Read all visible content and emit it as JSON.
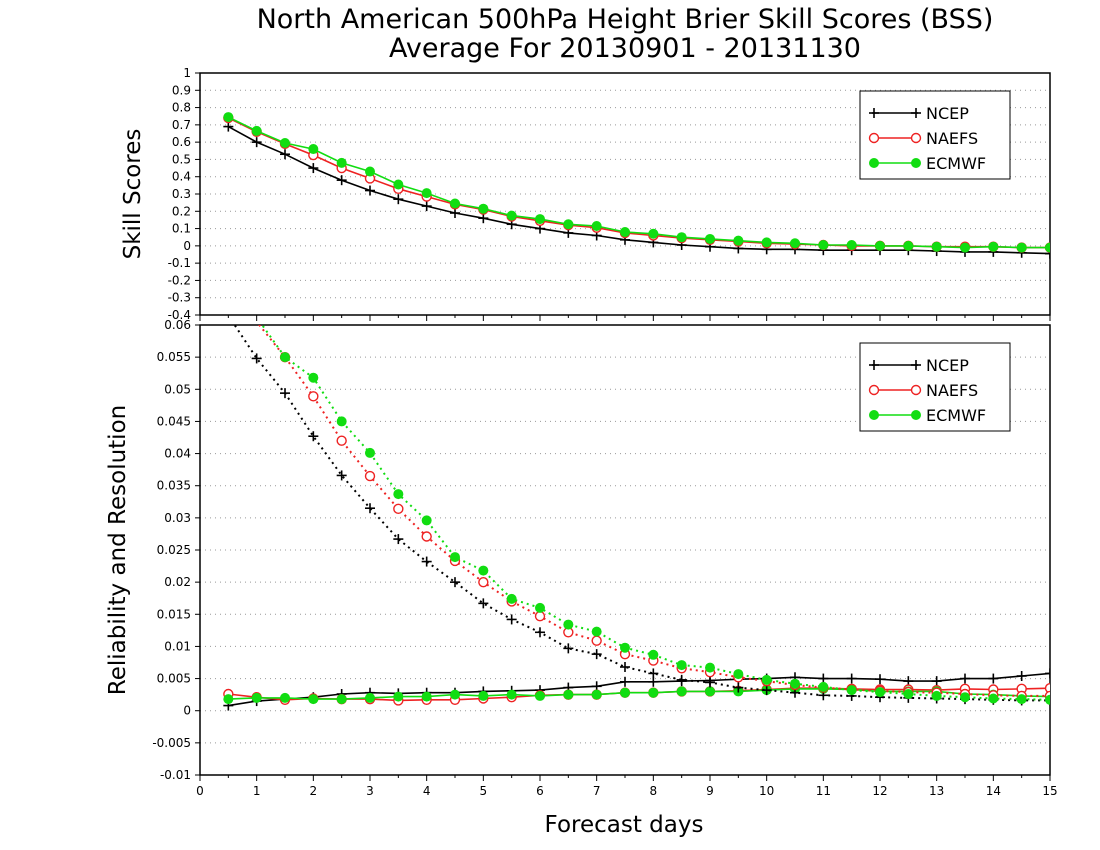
{
  "title": "North American 500hPa Height Brier Skill Scores (BSS)",
  "subtitle": "Average For 20130901 - 20131130",
  "x_axis_label": "Forecast days",
  "colors": {
    "NCEP": "#000000",
    "NAEFS": "#ee2222",
    "ECMWF": "#11dd11",
    "grid": "#999999"
  },
  "chart_data": [
    {
      "type": "line",
      "panel": "top",
      "ylabel": "Skill Scores",
      "xlim": [
        0,
        15
      ],
      "ylim": [
        -0.4,
        1
      ],
      "yticks": [
        "-0.4",
        "-0.3",
        "-0.2",
        "-0.1",
        "0",
        "0.1",
        "0.2",
        "0.3",
        "0.4",
        "0.5",
        "0.6",
        "0.7",
        "0.8",
        "0.9",
        "1"
      ],
      "grid": true,
      "legend_position": "top-right",
      "x": [
        0.5,
        1,
        1.5,
        2,
        2.5,
        3,
        3.5,
        4,
        4.5,
        5,
        5.5,
        6,
        6.5,
        7,
        7.5,
        8,
        8.5,
        9,
        9.5,
        10,
        10.5,
        11,
        11.5,
        12,
        12.5,
        13,
        13.5,
        14,
        14.5,
        15
      ],
      "series": [
        {
          "name": "NCEP",
          "marker": "plus",
          "values": [
            0.69,
            0.6,
            0.53,
            0.45,
            0.38,
            0.32,
            0.27,
            0.23,
            0.19,
            0.16,
            0.125,
            0.1,
            0.075,
            0.06,
            0.035,
            0.02,
            0.005,
            -0.005,
            -0.015,
            -0.02,
            -0.02,
            -0.025,
            -0.025,
            -0.025,
            -0.025,
            -0.03,
            -0.035,
            -0.035,
            -0.04,
            -0.045
          ]
        },
        {
          "name": "NAEFS",
          "marker": "open-circle",
          "values": [
            0.74,
            0.66,
            0.59,
            0.525,
            0.45,
            0.39,
            0.33,
            0.285,
            0.24,
            0.21,
            0.17,
            0.145,
            0.12,
            0.105,
            0.075,
            0.06,
            0.045,
            0.035,
            0.025,
            0.015,
            0.01,
            0.005,
            0.0,
            0.0,
            0.0,
            -0.005,
            -0.005,
            -0.005,
            -0.01,
            -0.01
          ]
        },
        {
          "name": "ECMWF",
          "marker": "filled-circle",
          "values": [
            0.745,
            0.665,
            0.595,
            0.56,
            0.48,
            0.43,
            0.355,
            0.305,
            0.245,
            0.215,
            0.175,
            0.155,
            0.125,
            0.115,
            0.08,
            0.07,
            0.05,
            0.04,
            0.03,
            0.02,
            0.015,
            0.005,
            0.005,
            0.0,
            0.0,
            -0.005,
            -0.01,
            -0.005,
            -0.01,
            -0.01
          ]
        }
      ]
    },
    {
      "type": "line",
      "panel": "bottom",
      "ylabel": "Reliability and Resolution",
      "xlim": [
        0,
        15
      ],
      "ylim": [
        -0.01,
        0.06
      ],
      "yticks": [
        "-0.01",
        "-0.005",
        "0",
        "0.005",
        "0.01",
        "0.015",
        "0.02",
        "0.025",
        "0.03",
        "0.035",
        "0.04",
        "0.045",
        "0.05",
        "0.055",
        "0.06"
      ],
      "xticks": [
        "0",
        "1",
        "2",
        "3",
        "4",
        "5",
        "6",
        "7",
        "8",
        "9",
        "10",
        "11",
        "12",
        "13",
        "14",
        "15"
      ],
      "grid": true,
      "legend_position": "top-right",
      "x": [
        0.5,
        1,
        1.5,
        2,
        2.5,
        3,
        3.5,
        4,
        4.5,
        5,
        5.5,
        6,
        6.5,
        7,
        7.5,
        8,
        8.5,
        9,
        9.5,
        10,
        10.5,
        11,
        11.5,
        12,
        12.5,
        13,
        13.5,
        14,
        14.5,
        15
      ],
      "series": [
        {
          "name": "NCEP",
          "marker": "plus",
          "line": "solid",
          "values": [
            0.0008,
            0.0015,
            0.0018,
            0.0021,
            0.0026,
            0.0028,
            0.0027,
            0.0028,
            0.0028,
            0.003,
            0.0031,
            0.0032,
            0.0036,
            0.0038,
            0.0045,
            0.0045,
            0.0046,
            0.0047,
            0.0049,
            0.005,
            0.0052,
            0.005,
            0.005,
            0.0049,
            0.0046,
            0.0046,
            0.005,
            0.005,
            0.0054,
            0.0058
          ]
        },
        {
          "name": "NAEFS",
          "marker": "open-circle",
          "line": "solid",
          "values": [
            0.0026,
            0.0021,
            0.0017,
            0.0019,
            0.0018,
            0.0018,
            0.0016,
            0.0017,
            0.0017,
            0.0019,
            0.0021,
            0.0024,
            0.0025,
            0.0025,
            0.0028,
            0.0028,
            0.003,
            0.003,
            0.0031,
            0.0033,
            0.0035,
            0.0035,
            0.0034,
            0.0033,
            0.0033,
            0.0032,
            0.0034,
            0.0033,
            0.0034,
            0.0035
          ]
        },
        {
          "name": "ECMWF",
          "marker": "filled-circle",
          "line": "solid",
          "values": [
            0.0018,
            0.002,
            0.002,
            0.0018,
            0.0018,
            0.002,
            0.0022,
            0.0022,
            0.0025,
            0.0023,
            0.0025,
            0.0023,
            0.0025,
            0.0025,
            0.0028,
            0.0028,
            0.003,
            0.003,
            0.003,
            0.0032,
            0.0034,
            0.0034,
            0.0033,
            0.003,
            0.003,
            0.003,
            0.0026,
            0.0025,
            0.0023,
            0.0022
          ]
        },
        {
          "name": "NCEP",
          "marker": "plus",
          "line": "dotted",
          "values": [
            0.0615,
            0.0548,
            0.0494,
            0.0427,
            0.0366,
            0.0315,
            0.0267,
            0.0232,
            0.02,
            0.0167,
            0.0142,
            0.0122,
            0.0097,
            0.0088,
            0.0068,
            0.0058,
            0.0048,
            0.0044,
            0.0036,
            0.0032,
            0.0028,
            0.0024,
            0.0023,
            0.0021,
            0.002,
            0.0019,
            0.0018,
            0.0017,
            0.0016,
            0.0016
          ]
        },
        {
          "name": "NAEFS",
          "marker": "open-circle",
          "line": "dotted",
          "values": [
            0.0645,
            0.0605,
            0.055,
            0.0489,
            0.042,
            0.0365,
            0.0314,
            0.0271,
            0.0233,
            0.02,
            0.017,
            0.0147,
            0.0122,
            0.0109,
            0.0088,
            0.0078,
            0.0066,
            0.006,
            0.0052,
            0.0046,
            0.004,
            0.0036,
            0.0033,
            0.0031,
            0.0029,
            0.0028,
            0.0026,
            0.0024,
            0.0023,
            0.0023
          ]
        },
        {
          "name": "ECMWF",
          "marker": "filled-circle",
          "line": "dotted",
          "values": [
            0.065,
            0.0612,
            0.055,
            0.0518,
            0.045,
            0.0401,
            0.0337,
            0.0296,
            0.0239,
            0.0218,
            0.0174,
            0.016,
            0.0134,
            0.0123,
            0.0098,
            0.0087,
            0.0071,
            0.0067,
            0.0057,
            0.0048,
            0.0042,
            0.0037,
            0.0032,
            0.0029,
            0.0026,
            0.0023,
            0.0021,
            0.0019,
            0.0018,
            0.0017
          ]
        }
      ]
    }
  ]
}
